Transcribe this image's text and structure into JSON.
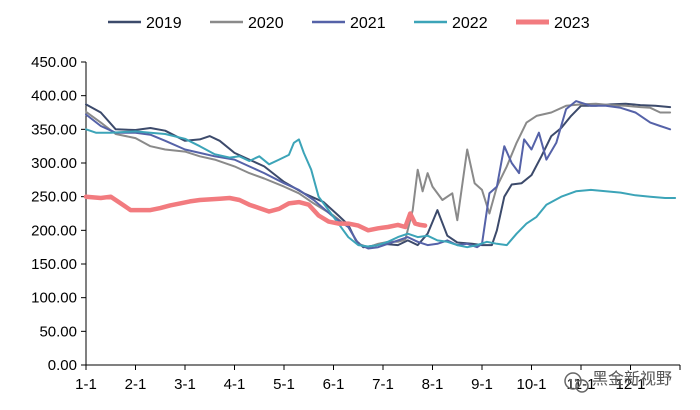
{
  "chart_data": {
    "type": "line",
    "title": "",
    "xlabel": "",
    "ylabel": "",
    "ylim": [
      0,
      450
    ],
    "y_ticks": [
      "0.00",
      "50.00",
      "100.00",
      "150.00",
      "200.00",
      "250.00",
      "300.00",
      "350.00",
      "400.00",
      "450.00"
    ],
    "y_tick_values": [
      0,
      50,
      100,
      150,
      200,
      250,
      300,
      350,
      400,
      450
    ],
    "x_ticks": [
      "1-1",
      "2-1",
      "3-1",
      "4-1",
      "5-1",
      "6-1",
      "7-1",
      "8-1",
      "9-1",
      "10-1",
      "11-1",
      "12-1"
    ],
    "x_tick_values": [
      0,
      1,
      2,
      3,
      4,
      5,
      6,
      7,
      8,
      9,
      10,
      11
    ],
    "xlim": [
      0,
      12
    ],
    "grid": false,
    "legend_position": "top",
    "series": [
      {
        "name": "2019",
        "color": "#3c4a6b",
        "width": 2,
        "points": [
          [
            0,
            387
          ],
          [
            0.3,
            375
          ],
          [
            0.6,
            350
          ],
          [
            1,
            349
          ],
          [
            1.3,
            352
          ],
          [
            1.6,
            348
          ],
          [
            2,
            333
          ],
          [
            2.3,
            335
          ],
          [
            2.5,
            340
          ],
          [
            2.7,
            333
          ],
          [
            3,
            315
          ],
          [
            3.3,
            305
          ],
          [
            3.6,
            295
          ],
          [
            4,
            272
          ],
          [
            4.4,
            255
          ],
          [
            4.8,
            242
          ],
          [
            5.1,
            222
          ],
          [
            5.3,
            208
          ],
          [
            5.45,
            185
          ],
          [
            5.6,
            175
          ],
          [
            5.8,
            177
          ],
          [
            6.0,
            180
          ],
          [
            6.3,
            178
          ],
          [
            6.5,
            185
          ],
          [
            6.7,
            178
          ],
          [
            6.9,
            195
          ],
          [
            7.1,
            230
          ],
          [
            7.3,
            192
          ],
          [
            7.5,
            182
          ],
          [
            7.8,
            180
          ],
          [
            8.0,
            178
          ],
          [
            8.2,
            178
          ],
          [
            8.3,
            200
          ],
          [
            8.45,
            250
          ],
          [
            8.6,
            268
          ],
          [
            8.8,
            270
          ],
          [
            9.0,
            282
          ],
          [
            9.2,
            310
          ],
          [
            9.4,
            340
          ],
          [
            9.6,
            352
          ],
          [
            9.8,
            370
          ],
          [
            10.0,
            385
          ],
          [
            10.3,
            385
          ],
          [
            10.6,
            387
          ],
          [
            10.9,
            388
          ],
          [
            11.2,
            386
          ],
          [
            11.5,
            385
          ],
          [
            11.8,
            383
          ]
        ]
      },
      {
        "name": "2020",
        "color": "#8a8a8a",
        "width": 2,
        "points": [
          [
            0,
            376
          ],
          [
            0.3,
            360
          ],
          [
            0.6,
            343
          ],
          [
            1,
            337
          ],
          [
            1.3,
            325
          ],
          [
            1.6,
            320
          ],
          [
            2,
            317
          ],
          [
            2.3,
            310
          ],
          [
            2.6,
            305
          ],
          [
            3,
            295
          ],
          [
            3.3,
            285
          ],
          [
            3.6,
            277
          ],
          [
            4,
            265
          ],
          [
            4.3,
            255
          ],
          [
            4.6,
            240
          ],
          [
            5.0,
            222
          ],
          [
            5.3,
            205
          ],
          [
            5.5,
            180
          ],
          [
            5.7,
            175
          ],
          [
            5.9,
            180
          ],
          [
            6.1,
            183
          ],
          [
            6.3,
            183
          ],
          [
            6.45,
            186
          ],
          [
            6.6,
            230
          ],
          [
            6.7,
            290
          ],
          [
            6.8,
            258
          ],
          [
            6.9,
            285
          ],
          [
            7.0,
            265
          ],
          [
            7.2,
            245
          ],
          [
            7.4,
            255
          ],
          [
            7.5,
            215
          ],
          [
            7.7,
            320
          ],
          [
            7.85,
            270
          ],
          [
            8.0,
            260
          ],
          [
            8.15,
            225
          ],
          [
            8.3,
            265
          ],
          [
            8.5,
            295
          ],
          [
            8.7,
            330
          ],
          [
            8.9,
            360
          ],
          [
            9.1,
            370
          ],
          [
            9.4,
            375
          ],
          [
            9.7,
            385
          ],
          [
            10.0,
            387
          ],
          [
            10.3,
            388
          ],
          [
            10.6,
            386
          ],
          [
            10.9,
            385
          ],
          [
            11.2,
            383
          ],
          [
            11.4,
            382
          ],
          [
            11.6,
            375
          ],
          [
            11.8,
            375
          ]
        ]
      },
      {
        "name": "2021",
        "color": "#5562a8",
        "width": 2,
        "points": [
          [
            0,
            372
          ],
          [
            0.3,
            355
          ],
          [
            0.6,
            345
          ],
          [
            1,
            345
          ],
          [
            1.3,
            342
          ],
          [
            1.6,
            333
          ],
          [
            2,
            320
          ],
          [
            2.3,
            315
          ],
          [
            2.6,
            310
          ],
          [
            3,
            305
          ],
          [
            3.3,
            295
          ],
          [
            3.6,
            285
          ],
          [
            4,
            270
          ],
          [
            4.3,
            260
          ],
          [
            4.6,
            245
          ],
          [
            5,
            220
          ],
          [
            5.3,
            205
          ],
          [
            5.5,
            180
          ],
          [
            5.7,
            173
          ],
          [
            5.9,
            175
          ],
          [
            6.1,
            180
          ],
          [
            6.3,
            185
          ],
          [
            6.5,
            190
          ],
          [
            6.7,
            183
          ],
          [
            6.9,
            178
          ],
          [
            7.1,
            180
          ],
          [
            7.3,
            185
          ],
          [
            7.5,
            178
          ],
          [
            7.7,
            180
          ],
          [
            7.9,
            175
          ],
          [
            8.0,
            180
          ],
          [
            8.15,
            255
          ],
          [
            8.3,
            265
          ],
          [
            8.45,
            325
          ],
          [
            8.6,
            300
          ],
          [
            8.75,
            285
          ],
          [
            8.85,
            335
          ],
          [
            9.0,
            320
          ],
          [
            9.15,
            345
          ],
          [
            9.3,
            305
          ],
          [
            9.5,
            330
          ],
          [
            9.7,
            380
          ],
          [
            9.9,
            392
          ],
          [
            10.2,
            385
          ],
          [
            10.5,
            385
          ],
          [
            10.8,
            382
          ],
          [
            11.1,
            375
          ],
          [
            11.4,
            360
          ],
          [
            11.6,
            355
          ],
          [
            11.8,
            350
          ]
        ]
      },
      {
        "name": "2022",
        "color": "#3ca4b8",
        "width": 2,
        "points": [
          [
            0,
            350
          ],
          [
            0.2,
            345
          ],
          [
            0.5,
            345
          ],
          [
            1,
            347
          ],
          [
            1.3,
            345
          ],
          [
            1.6,
            343
          ],
          [
            2,
            336
          ],
          [
            2.3,
            325
          ],
          [
            2.6,
            313
          ],
          [
            2.9,
            308
          ],
          [
            3.1,
            310
          ],
          [
            3.3,
            303
          ],
          [
            3.5,
            310
          ],
          [
            3.7,
            298
          ],
          [
            3.9,
            305
          ],
          [
            4.1,
            312
          ],
          [
            4.2,
            330
          ],
          [
            4.3,
            335
          ],
          [
            4.4,
            315
          ],
          [
            4.55,
            290
          ],
          [
            4.7,
            250
          ],
          [
            4.9,
            230
          ],
          [
            5.1,
            210
          ],
          [
            5.3,
            190
          ],
          [
            5.5,
            178
          ],
          [
            5.7,
            176
          ],
          [
            5.9,
            178
          ],
          [
            6.1,
            183
          ],
          [
            6.3,
            190
          ],
          [
            6.5,
            195
          ],
          [
            6.7,
            190
          ],
          [
            6.9,
            192
          ],
          [
            7.1,
            185
          ],
          [
            7.3,
            183
          ],
          [
            7.5,
            178
          ],
          [
            7.7,
            175
          ],
          [
            7.9,
            178
          ],
          [
            8.1,
            183
          ],
          [
            8.3,
            180
          ],
          [
            8.5,
            178
          ],
          [
            8.7,
            195
          ],
          [
            8.9,
            210
          ],
          [
            9.1,
            220
          ],
          [
            9.3,
            238
          ],
          [
            9.6,
            250
          ],
          [
            9.9,
            258
          ],
          [
            10.2,
            260
          ],
          [
            10.5,
            258
          ],
          [
            10.8,
            256
          ],
          [
            11.1,
            252
          ],
          [
            11.4,
            250
          ],
          [
            11.7,
            248
          ],
          [
            11.9,
            248
          ]
        ]
      },
      {
        "name": "2023",
        "color": "#f27b7f",
        "width": 4.5,
        "points": [
          [
            0,
            250
          ],
          [
            0.3,
            248
          ],
          [
            0.5,
            250
          ],
          [
            0.7,
            240
          ],
          [
            0.9,
            230
          ],
          [
            1.1,
            230
          ],
          [
            1.3,
            230
          ],
          [
            1.5,
            233
          ],
          [
            1.7,
            237
          ],
          [
            1.9,
            240
          ],
          [
            2.1,
            243
          ],
          [
            2.3,
            245
          ],
          [
            2.5,
            246
          ],
          [
            2.7,
            247
          ],
          [
            2.9,
            248
          ],
          [
            3.1,
            245
          ],
          [
            3.3,
            238
          ],
          [
            3.5,
            233
          ],
          [
            3.7,
            228
          ],
          [
            3.9,
            232
          ],
          [
            4.1,
            240
          ],
          [
            4.3,
            242
          ],
          [
            4.5,
            238
          ],
          [
            4.7,
            222
          ],
          [
            4.9,
            213
          ],
          [
            5.1,
            210
          ],
          [
            5.3,
            210
          ],
          [
            5.5,
            207
          ],
          [
            5.7,
            200
          ],
          [
            5.9,
            203
          ],
          [
            6.1,
            205
          ],
          [
            6.3,
            208
          ],
          [
            6.45,
            205
          ],
          [
            6.55,
            225
          ],
          [
            6.65,
            210
          ],
          [
            6.75,
            208
          ],
          [
            6.85,
            207
          ]
        ]
      }
    ]
  },
  "watermark": {
    "text": "黑金新视野",
    "icon": "wechat-icon"
  }
}
